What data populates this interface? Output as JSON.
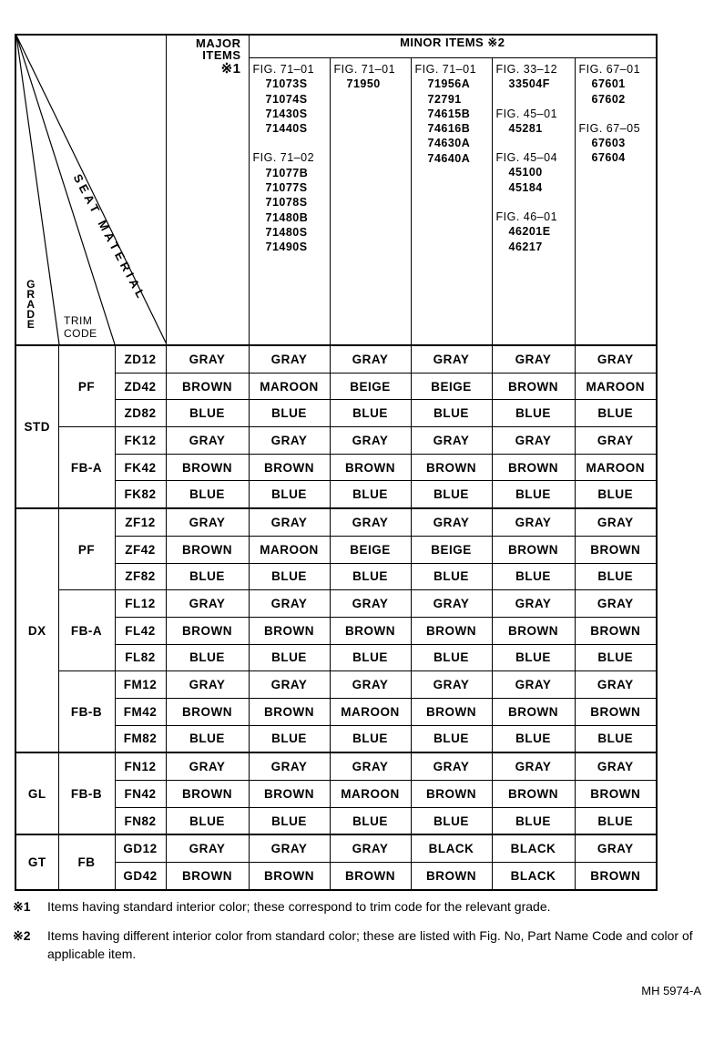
{
  "header": {
    "grade_label": "GRADE",
    "trim_code_label": "TRIM CODE",
    "seat_material_label": "SEAT MATERIAL",
    "major_items_label": "MAJOR ITEMS",
    "major_items_mark": "※1",
    "minor_items_label": "MINOR ITEMS ※2",
    "minor_columns": [
      {
        "lines": [
          "FIG. 71–01",
          "71073S",
          "71074S",
          "71430S",
          "71440S",
          "",
          "FIG. 71–02",
          "71077B",
          "71077S",
          "71078S",
          "71480B",
          "71480S",
          "71490S"
        ]
      },
      {
        "lines": [
          "FIG. 71–01",
          "71950"
        ]
      },
      {
        "lines": [
          "FIG. 71–01",
          "71956A",
          "72791",
          "74615B",
          "74616B",
          "74630A",
          "74640A"
        ]
      },
      {
        "lines": [
          "FIG. 33–12",
          "33504F",
          "",
          "FIG. 45–01",
          "45281",
          "",
          "FIG. 45–04",
          "45100",
          "45184",
          "",
          "FIG. 46–01",
          "46201E",
          "46217"
        ]
      },
      {
        "lines": [
          "FIG. 67–01",
          "67601",
          "67602",
          "",
          "FIG. 67–05",
          "67603",
          "67604"
        ]
      }
    ]
  },
  "groups": [
    {
      "grade": "STD",
      "materials": [
        {
          "seat": "PF",
          "rows": [
            {
              "trim": "ZD12",
              "colors": [
                "GRAY",
                "GRAY",
                "GRAY",
                "GRAY",
                "GRAY",
                "GRAY"
              ]
            },
            {
              "trim": "ZD42",
              "colors": [
                "BROWN",
                "MAROON",
                "BEIGE",
                "BEIGE",
                "BROWN",
                "MAROON"
              ]
            },
            {
              "trim": "ZD82",
              "colors": [
                "BLUE",
                "BLUE",
                "BLUE",
                "BLUE",
                "BLUE",
                "BLUE"
              ]
            }
          ]
        },
        {
          "seat": "FB-A",
          "rows": [
            {
              "trim": "FK12",
              "colors": [
                "GRAY",
                "GRAY",
                "GRAY",
                "GRAY",
                "GRAY",
                "GRAY"
              ]
            },
            {
              "trim": "FK42",
              "colors": [
                "BROWN",
                "BROWN",
                "BROWN",
                "BROWN",
                "BROWN",
                "MAROON"
              ]
            },
            {
              "trim": "FK82",
              "colors": [
                "BLUE",
                "BLUE",
                "BLUE",
                "BLUE",
                "BLUE",
                "BLUE"
              ]
            }
          ]
        }
      ]
    },
    {
      "grade": "DX",
      "materials": [
        {
          "seat": "PF",
          "rows": [
            {
              "trim": "ZF12",
              "colors": [
                "GRAY",
                "GRAY",
                "GRAY",
                "GRAY",
                "GRAY",
                "GRAY"
              ]
            },
            {
              "trim": "ZF42",
              "colors": [
                "BROWN",
                "MAROON",
                "BEIGE",
                "BEIGE",
                "BROWN",
                "BROWN"
              ]
            },
            {
              "trim": "ZF82",
              "colors": [
                "BLUE",
                "BLUE",
                "BLUE",
                "BLUE",
                "BLUE",
                "BLUE"
              ]
            }
          ]
        },
        {
          "seat": "FB-A",
          "rows": [
            {
              "trim": "FL12",
              "colors": [
                "GRAY",
                "GRAY",
                "GRAY",
                "GRAY",
                "GRAY",
                "GRAY"
              ]
            },
            {
              "trim": "FL42",
              "colors": [
                "BROWN",
                "BROWN",
                "BROWN",
                "BROWN",
                "BROWN",
                "BROWN"
              ]
            },
            {
              "trim": "FL82",
              "colors": [
                "BLUE",
                "BLUE",
                "BLUE",
                "BLUE",
                "BLUE",
                "BLUE"
              ]
            }
          ]
        },
        {
          "seat": "FB-B",
          "rows": [
            {
              "trim": "FM12",
              "colors": [
                "GRAY",
                "GRAY",
                "GRAY",
                "GRAY",
                "GRAY",
                "GRAY"
              ]
            },
            {
              "trim": "FM42",
              "colors": [
                "BROWN",
                "BROWN",
                "MAROON",
                "BROWN",
                "BROWN",
                "BROWN"
              ]
            },
            {
              "trim": "FM82",
              "colors": [
                "BLUE",
                "BLUE",
                "BLUE",
                "BLUE",
                "BLUE",
                "BLUE"
              ]
            }
          ]
        }
      ]
    },
    {
      "grade": "GL",
      "materials": [
        {
          "seat": "FB-B",
          "rows": [
            {
              "trim": "FN12",
              "colors": [
                "GRAY",
                "GRAY",
                "GRAY",
                "GRAY",
                "GRAY",
                "GRAY"
              ]
            },
            {
              "trim": "FN42",
              "colors": [
                "BROWN",
                "BROWN",
                "MAROON",
                "BROWN",
                "BROWN",
                "BROWN"
              ]
            },
            {
              "trim": "FN82",
              "colors": [
                "BLUE",
                "BLUE",
                "BLUE",
                "BLUE",
                "BLUE",
                "BLUE"
              ]
            }
          ]
        }
      ]
    },
    {
      "grade": "GT",
      "materials": [
        {
          "seat": "FB",
          "rows": [
            {
              "trim": "GD12",
              "colors": [
                "GRAY",
                "GRAY",
                "GRAY",
                "BLACK",
                "BLACK",
                "GRAY"
              ]
            },
            {
              "trim": "GD42",
              "colors": [
                "BROWN",
                "BROWN",
                "BROWN",
                "BROWN",
                "BLACK",
                "BROWN"
              ]
            }
          ]
        }
      ]
    }
  ],
  "notes": [
    {
      "mark": "※1",
      "text": "Items having standard interior color; these correspond to trim code for the relevant grade."
    },
    {
      "mark": "※2",
      "text": "Items having different interior color from standard color; these are listed with Fig. No, Part Name Code and color of applicable item."
    }
  ],
  "doc_code": "MH 5974-A"
}
